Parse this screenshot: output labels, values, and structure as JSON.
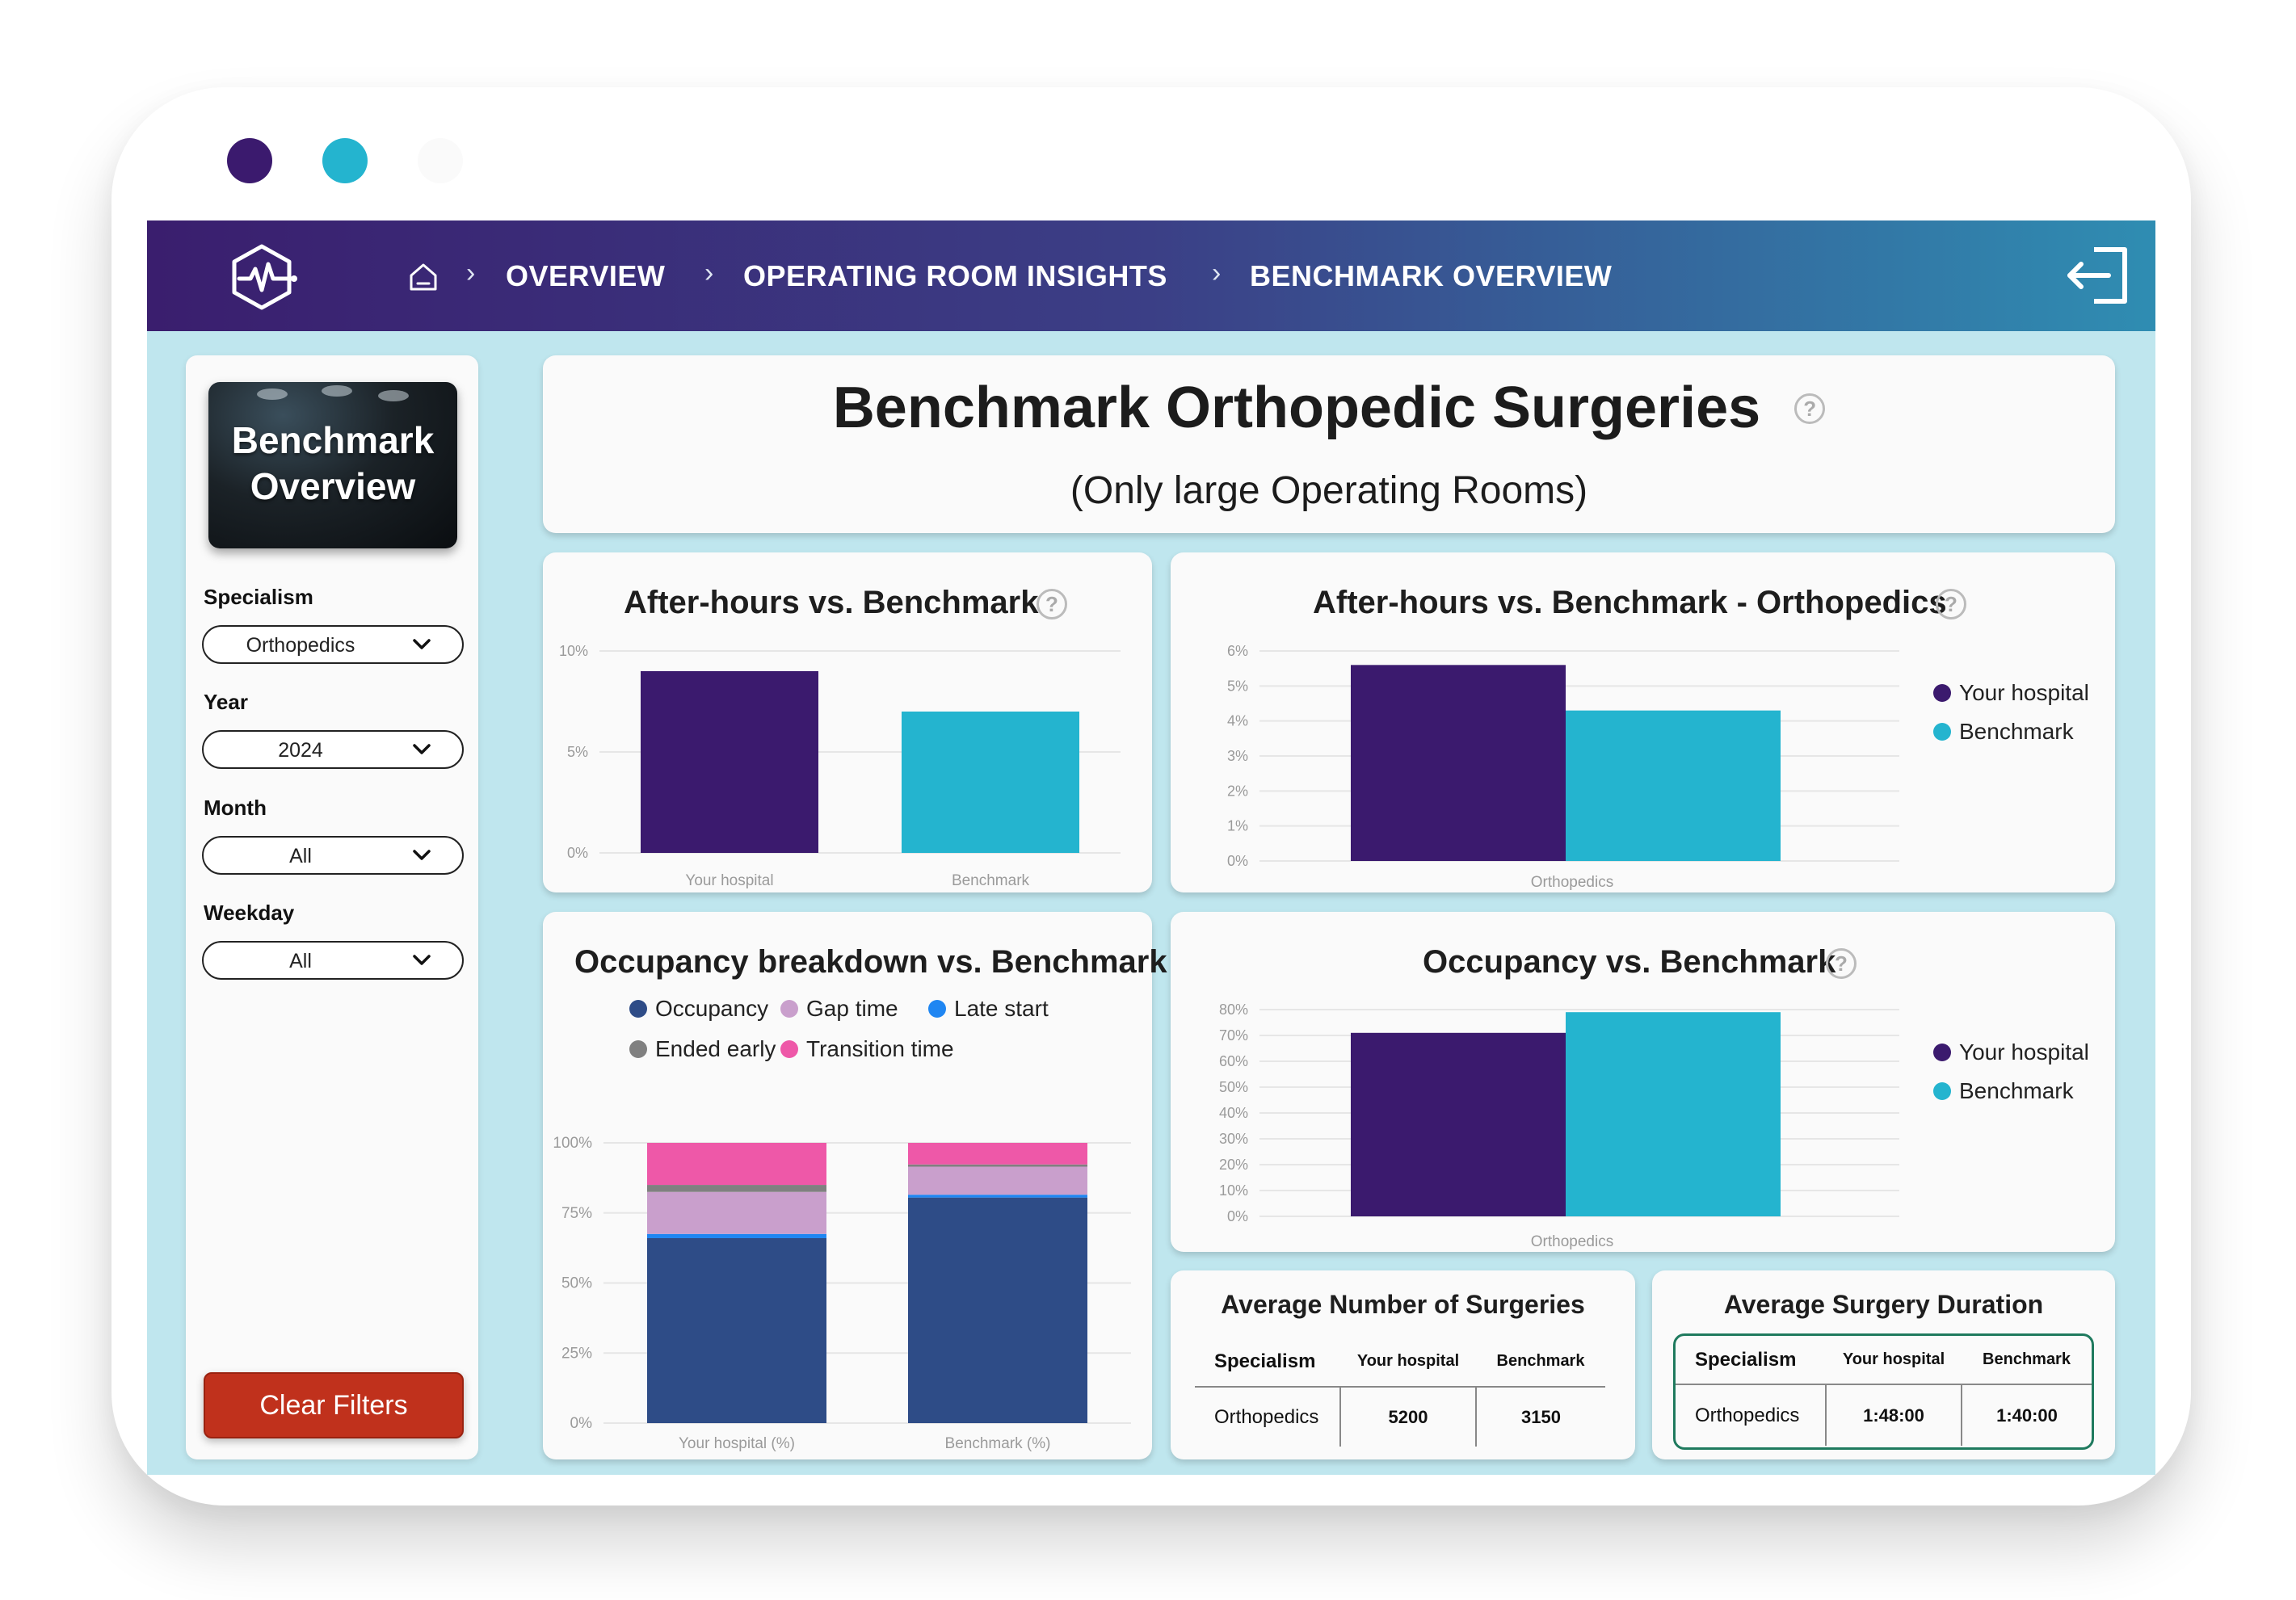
{
  "colors": {
    "hospital": "#3b1a6e",
    "benchmark": "#24b4cf",
    "occupancy": "#2e4c87",
    "gap_time": "#c99fcc",
    "late_start": "#1f86f2",
    "ended_early": "#808080",
    "transition_time": "#ee58a8",
    "clear_button": "#c0311c"
  },
  "nav": {
    "logo_icon": "heartbeat-hexagon-icon",
    "home_icon": "home-icon",
    "breadcrumbs": [
      "OVERVIEW",
      "OPERATING ROOM INSIGHTS",
      "BENCHMARK OVERVIEW"
    ],
    "logout_icon": "logout-icon"
  },
  "sidebar": {
    "hero_text": "Benchmark Overview",
    "filters": [
      {
        "label": "Specialism",
        "value": "Orthopedics"
      },
      {
        "label": "Year",
        "value": "2024"
      },
      {
        "label": "Month",
        "value": "All"
      },
      {
        "label": "Weekday",
        "value": "All"
      }
    ],
    "clear_label": "Clear Filters"
  },
  "header": {
    "title": "Benchmark Orthopedic Surgeries",
    "subtitle": "(Only large Operating Rooms)",
    "help_icon": "?"
  },
  "chart_data": [
    {
      "id": "after_hours",
      "type": "bar",
      "title": "After-hours vs. Benchmark",
      "categories": [
        "Your hospital",
        "Benchmark"
      ],
      "values": [
        9,
        7
      ],
      "unit": "%",
      "ylim": [
        0,
        10
      ],
      "yticks": [
        "0%",
        "5%",
        "10%"
      ],
      "grid": true
    },
    {
      "id": "after_hours_ortho",
      "type": "bar",
      "title": "After-hours vs. Benchmark - Orthopedics",
      "categories": [
        "Orthopedics"
      ],
      "series": [
        {
          "name": "Your hospital",
          "values": [
            5.6
          ]
        },
        {
          "name": "Benchmark",
          "values": [
            4.3
          ]
        }
      ],
      "unit": "%",
      "ylim": [
        0,
        6
      ],
      "yticks": [
        "0%",
        "1%",
        "2%",
        "3%",
        "4%",
        "5%",
        "6%"
      ],
      "legend": "right",
      "grid": true
    },
    {
      "id": "occupancy_breakdown",
      "type": "bar",
      "stacked": true,
      "title": "Occupancy breakdown vs. Benchmark",
      "categories": [
        "Your hospital (%)",
        "Benchmark (%)"
      ],
      "series": [
        {
          "name": "Occupancy",
          "values": [
            66,
            80.5
          ]
        },
        {
          "name": "Late start",
          "values": [
            1.5,
            1
          ]
        },
        {
          "name": "Gap time",
          "values": [
            15,
            10
          ]
        },
        {
          "name": "Ended early",
          "values": [
            2.5,
            0.8
          ]
        },
        {
          "name": "Transition time",
          "values": [
            15,
            7.7
          ]
        }
      ],
      "legend_order": [
        "Occupancy",
        "Gap time",
        "Late start",
        "Ended early",
        "Transition time"
      ],
      "ylim": [
        0,
        100
      ],
      "yticks": [
        "0%",
        "25%",
        "50%",
        "75%",
        "100%"
      ],
      "legend": "top",
      "grid": true
    },
    {
      "id": "occupancy",
      "type": "bar",
      "title": "Occupancy vs. Benchmark",
      "categories": [
        "Orthopedics"
      ],
      "series": [
        {
          "name": "Your hospital",
          "values": [
            71
          ]
        },
        {
          "name": "Benchmark",
          "values": [
            79
          ]
        }
      ],
      "unit": "%",
      "ylim": [
        0,
        80
      ],
      "yticks": [
        "0%",
        "10%",
        "20%",
        "30%",
        "40%",
        "50%",
        "60%",
        "70%",
        "80%"
      ],
      "legend": "right",
      "grid": true
    }
  ],
  "tables": {
    "avg_surgeries": {
      "title": "Average Number of Surgeries",
      "headers": [
        "Specialism",
        "Your hospital",
        "Benchmark"
      ],
      "row": [
        "Orthopedics",
        "5200",
        "3150"
      ]
    },
    "avg_duration": {
      "title": "Average Surgery Duration",
      "headers": [
        "Specialism",
        "Your hospital",
        "Benchmark"
      ],
      "row": [
        "Orthopedics",
        "1:48:00",
        "1:40:00"
      ]
    }
  }
}
